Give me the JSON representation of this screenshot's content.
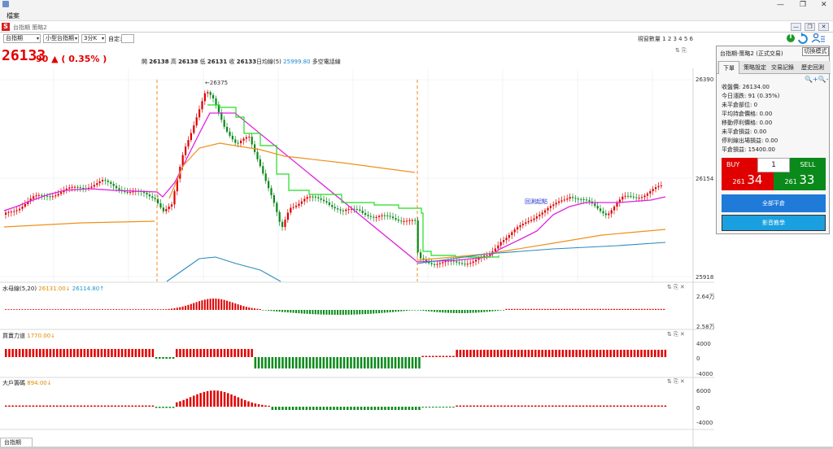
{
  "menubar": {
    "file_label": "檔案"
  },
  "subwindow": {
    "title": "台指期 策略2"
  },
  "toolbar": {
    "product": "台指期",
    "contract": "小型台指期",
    "period": "3分K",
    "custom_label": "自定:",
    "window_count": "視窗數量 1 2 3 4 5 6"
  },
  "header": {
    "price": "26133",
    "change": "90 ▲ ( 0.35% )",
    "open_label": "開",
    "open": "26138",
    "high_label": "高",
    "high": "26138",
    "low_label": "低",
    "low": "26131",
    "close_label": "收",
    "close": "26133",
    "ma_label": "日均線(5)",
    "ma_value": "25999.80",
    "ma_suffix": "多空電話線"
  },
  "main_axis": {
    "top": "26390",
    "mid": "26154",
    "bottom": "25918"
  },
  "annotations": {
    "high_marker": "←26375",
    "text": "回測起點"
  },
  "subcharts": [
    {
      "name": "水母線(5,20)",
      "v1": "26131.00↓",
      "v2": "26114.80↑",
      "axis_top": "2.64万",
      "axis_bottom": "2.58万"
    },
    {
      "name": "買賣力道",
      "v1": "1770.00↓",
      "axis_top": "4000",
      "axis_mid": "0",
      "axis_bottom": "-4000"
    },
    {
      "name": "大戶籌碼",
      "v1": "894.00↓",
      "axis_top": "6000",
      "axis_mid": "0",
      "axis_bottom": "-4000"
    }
  ],
  "panel": {
    "title": "台指期-策略2 (正式交易)",
    "mode_button": "切換模式",
    "tabs": [
      "下單",
      "策略設定",
      "交易記錄",
      "歷史回測"
    ],
    "info": [
      "收盤價: 26134.00",
      "今日漲跌: 91 (0.35%)",
      "未平倉部位: 0",
      "平均持倉價格: 0.00",
      "移動停利價格: 0.00",
      "未平倉損益: 0.00",
      "停利線出場損益: 0.00",
      "平倉損益: 15400.00"
    ],
    "buy_label": "BUY",
    "sell_label": "SELL",
    "quantity": "1",
    "buy_price_prefix": "261",
    "buy_price_suffix": "34",
    "sell_price_prefix": "261",
    "sell_price_suffix": "33",
    "close_all": "全部平倉",
    "video": "影音教學"
  },
  "bottom_tab": "台指期"
}
